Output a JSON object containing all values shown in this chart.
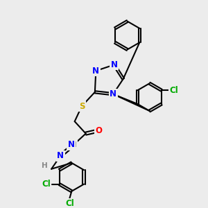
{
  "bg_color": "#ececec",
  "bond_color": "#000000",
  "bond_width": 1.5,
  "atom_colors": {
    "N": "#0000ff",
    "S": "#ccaa00",
    "O": "#ff0000",
    "Cl": "#00aa00",
    "H": "#888888",
    "C": "#000000"
  },
  "font_size": 8.5,
  "font_size_small": 7.5
}
